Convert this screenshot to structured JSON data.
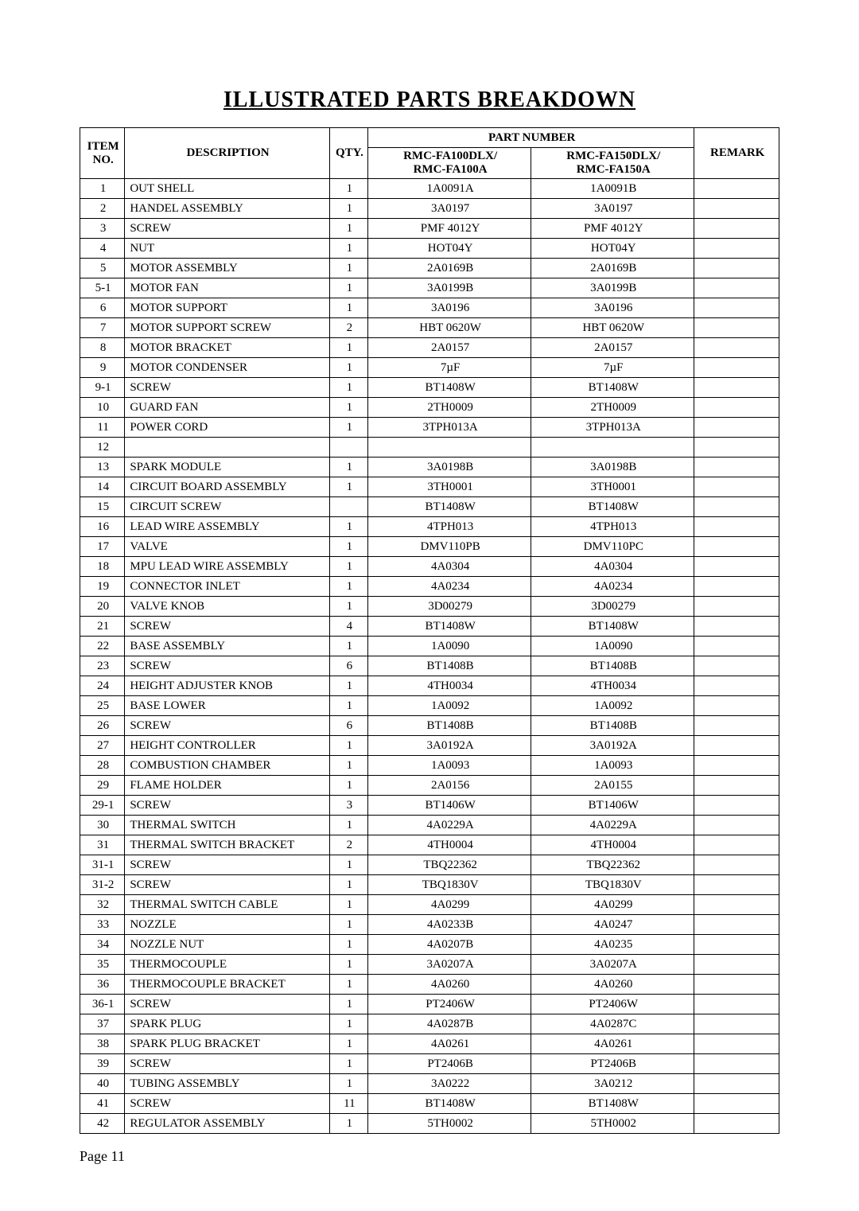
{
  "title": "ILLUSTRATED PARTS BREAKDOWN",
  "page_label": "Page 11",
  "headers": {
    "item_no": "ITEM NO.",
    "description": "DESCRIPTION",
    "qty": "QTY.",
    "part_number": "PART NUMBER",
    "remark": "REMARK",
    "model_a_line1": "RMC-FA100DLX/",
    "model_a_line2": "RMC-FA100A",
    "model_b_line1": "RMC-FA150DLX/",
    "model_b_line2": "RMC-FA150A"
  },
  "table": {
    "columns": [
      "item",
      "description",
      "qty",
      "pn_a",
      "pn_b",
      "remark"
    ],
    "rows": [
      [
        "1",
        "OUT SHELL",
        "1",
        "1A0091A",
        "1A0091B",
        ""
      ],
      [
        "2",
        "HANDEL ASSEMBLY",
        "1",
        "3A0197",
        "3A0197",
        ""
      ],
      [
        "3",
        "SCREW",
        "1",
        "PMF 4012Y",
        "PMF 4012Y",
        ""
      ],
      [
        "4",
        "NUT",
        "1",
        "HOT04Y",
        "HOT04Y",
        ""
      ],
      [
        "5",
        "MOTOR ASSEMBLY",
        "1",
        "2A0169B",
        "2A0169B",
        ""
      ],
      [
        "5-1",
        "MOTOR FAN",
        "1",
        "3A0199B",
        "3A0199B",
        ""
      ],
      [
        "6",
        "MOTOR SUPPORT",
        "1",
        "3A0196",
        "3A0196",
        ""
      ],
      [
        "7",
        "MOTOR SUPPORT SCREW",
        "2",
        "HBT 0620W",
        "HBT 0620W",
        ""
      ],
      [
        "8",
        "MOTOR BRACKET",
        "1",
        "2A0157",
        "2A0157",
        ""
      ],
      [
        "9",
        "MOTOR CONDENSER",
        "1",
        "7µF",
        "7µF",
        ""
      ],
      [
        "9-1",
        "SCREW",
        "1",
        "BT1408W",
        "BT1408W",
        ""
      ],
      [
        "10",
        "GUARD FAN",
        "1",
        "2TH0009",
        "2TH0009",
        ""
      ],
      [
        "11",
        "POWER CORD",
        "1",
        "3TPH013A",
        "3TPH013A",
        ""
      ],
      [
        "12",
        "",
        "",
        "",
        "",
        ""
      ],
      [
        "13",
        "SPARK MODULE",
        "1",
        "3A0198B",
        "3A0198B",
        ""
      ],
      [
        "14",
        "CIRCUIT BOARD ASSEMBLY",
        "1",
        "3TH0001",
        "3TH0001",
        ""
      ],
      [
        "15",
        "CIRCUIT SCREW",
        "",
        "BT1408W",
        "BT1408W",
        ""
      ],
      [
        "16",
        "LEAD WIRE ASSEMBLY",
        "1",
        "4TPH013",
        "4TPH013",
        ""
      ],
      [
        "17",
        "VALVE",
        "1",
        "DMV110PB",
        "DMV110PC",
        ""
      ],
      [
        "18",
        "MPU LEAD WIRE ASSEMBLY",
        "1",
        "4A0304",
        "4A0304",
        ""
      ],
      [
        "19",
        "CONNECTOR INLET",
        "1",
        "4A0234",
        "4A0234",
        ""
      ],
      [
        "20",
        "VALVE KNOB",
        "1",
        "3D00279",
        "3D00279",
        ""
      ],
      [
        "21",
        "SCREW",
        "4",
        "BT1408W",
        "BT1408W",
        ""
      ],
      [
        "22",
        "BASE ASSEMBLY",
        "1",
        "1A0090",
        "1A0090",
        ""
      ],
      [
        "23",
        "SCREW",
        "6",
        "BT1408B",
        "BT1408B",
        ""
      ],
      [
        "24",
        "HEIGHT ADJUSTER KNOB",
        "1",
        "4TH0034",
        "4TH0034",
        ""
      ],
      [
        "25",
        "BASE LOWER",
        "1",
        "1A0092",
        "1A0092",
        ""
      ],
      [
        "26",
        "SCREW",
        "6",
        "BT1408B",
        "BT1408B",
        ""
      ],
      [
        "27",
        "HEIGHT CONTROLLER",
        "1",
        "3A0192A",
        "3A0192A",
        ""
      ],
      [
        "28",
        "COMBUSTION CHAMBER",
        "1",
        "1A0093",
        "1A0093",
        ""
      ],
      [
        "29",
        "FLAME HOLDER",
        "1",
        "2A0156",
        "2A0155",
        ""
      ],
      [
        "29-1",
        "SCREW",
        "3",
        "BT1406W",
        "BT1406W",
        ""
      ],
      [
        "30",
        "THERMAL SWITCH",
        "1",
        "4A0229A",
        "4A0229A",
        ""
      ],
      [
        "31",
        "THERMAL SWITCH BRACKET",
        "2",
        "4TH0004",
        "4TH0004",
        ""
      ],
      [
        "31-1",
        "SCREW",
        "1",
        "TBQ22362",
        "TBQ22362",
        ""
      ],
      [
        "31-2",
        "SCREW",
        "1",
        "TBQ1830V",
        "TBQ1830V",
        ""
      ],
      [
        "32",
        "THERMAL SWITCH CABLE",
        "1",
        "4A0299",
        "4A0299",
        ""
      ],
      [
        "33",
        "NOZZLE",
        "1",
        "4A0233B",
        "4A0247",
        ""
      ],
      [
        "34",
        "NOZZLE NUT",
        "1",
        "4A0207B",
        "4A0235",
        ""
      ],
      [
        "35",
        "THERMOCOUPLE",
        "1",
        "3A0207A",
        "3A0207A",
        ""
      ],
      [
        "36",
        "THERMOCOUPLE BRACKET",
        "1",
        "4A0260",
        "4A0260",
        ""
      ],
      [
        "36-1",
        "SCREW",
        "1",
        "PT2406W",
        "PT2406W",
        ""
      ],
      [
        "37",
        "SPARK PLUG",
        "1",
        "4A0287B",
        "4A0287C",
        ""
      ],
      [
        "38",
        "SPARK PLUG BRACKET",
        "1",
        "4A0261",
        "4A0261",
        ""
      ],
      [
        "39",
        "SCREW",
        "1",
        "PT2406B",
        "PT2406B",
        ""
      ],
      [
        "40",
        "TUBING ASSEMBLY",
        "1",
        "3A0222",
        "3A0212",
        ""
      ],
      [
        "41",
        "SCREW",
        "11",
        "BT1408W",
        "BT1408W",
        ""
      ],
      [
        "42",
        "REGULATOR ASSEMBLY",
        "1",
        "5TH0002",
        "5TH0002",
        ""
      ]
    ]
  },
  "style": {
    "font_family": "Times New Roman",
    "title_fontsize": 28,
    "cell_fontsize": 15,
    "page_label_fontsize": 18,
    "border_color": "#000000",
    "background_color": "#ffffff",
    "text_color": "#000000"
  }
}
